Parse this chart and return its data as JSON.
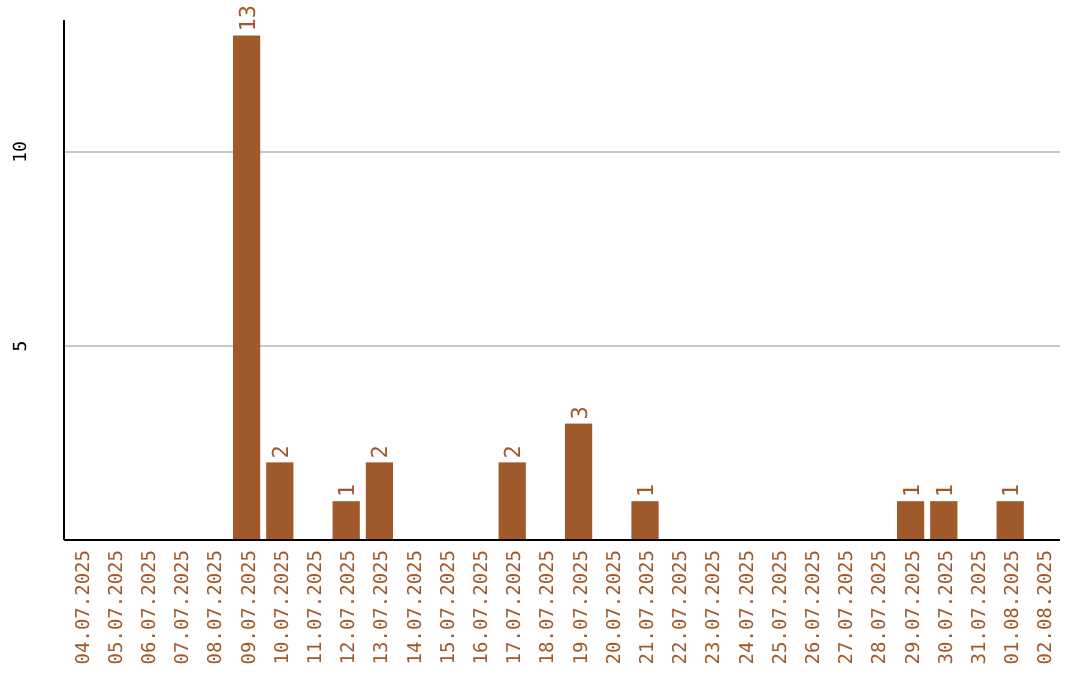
{
  "chart_data": {
    "type": "bar",
    "categories": [
      "04.07.2025",
      "05.07.2025",
      "06.07.2025",
      "07.07.2025",
      "08.07.2025",
      "09.07.2025",
      "10.07.2025",
      "11.07.2025",
      "12.07.2025",
      "13.07.2025",
      "14.07.2025",
      "15.07.2025",
      "16.07.2025",
      "17.07.2025",
      "18.07.2025",
      "19.07.2025",
      "20.07.2025",
      "21.07.2025",
      "22.07.2025",
      "23.07.2025",
      "24.07.2025",
      "25.07.2025",
      "26.07.2025",
      "27.07.2025",
      "28.07.2025",
      "29.07.2025",
      "30.07.2025",
      "31.07.2025",
      "01.08.2025",
      "02.08.2025"
    ],
    "values": [
      0,
      0,
      0,
      0,
      0,
      13,
      2,
      0,
      1,
      2,
      0,
      0,
      0,
      2,
      0,
      3,
      0,
      1,
      0,
      0,
      0,
      0,
      0,
      0,
      0,
      1,
      1,
      0,
      1,
      0
    ],
    "value_labels": [
      null,
      null,
      null,
      null,
      null,
      "13",
      "2",
      null,
      "1",
      "2",
      null,
      null,
      null,
      "2",
      null,
      "3",
      null,
      "1",
      null,
      null,
      null,
      null,
      null,
      null,
      null,
      "1",
      "1",
      null,
      "1",
      null
    ],
    "color": "#a0592a",
    "ylim": [
      0,
      13.4
    ],
    "yticks": [
      5,
      10
    ],
    "grid": "y"
  }
}
